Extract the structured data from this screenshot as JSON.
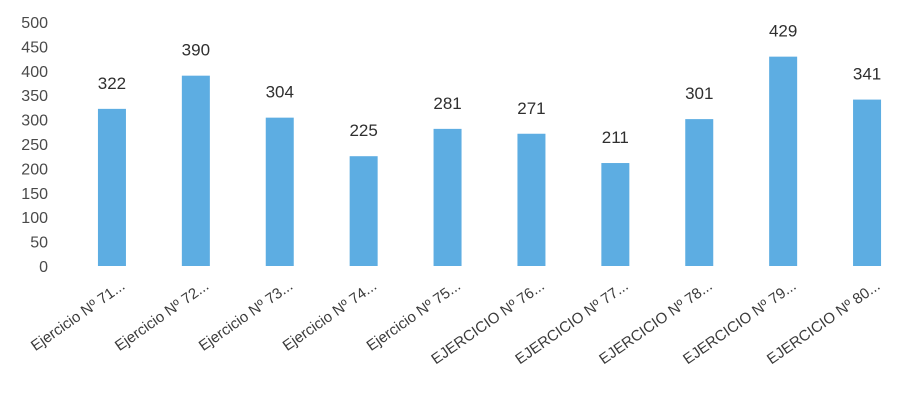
{
  "chart_data": {
    "type": "bar",
    "title": "",
    "xlabel": "",
    "ylabel": "",
    "ylim": [
      0,
      500
    ],
    "yticks": [
      0,
      50,
      100,
      150,
      200,
      250,
      300,
      350,
      400,
      450,
      500
    ],
    "grid": false,
    "legend": "none",
    "bar_color": "#5DADE2",
    "categories": [
      "Ejercicio Nº 71...",
      "Ejercicio Nº 72...",
      "Ejercicio Nº 73...",
      "Ejercicio Nº 74...",
      "Ejercicio Nº 75...",
      "EJERCICIO Nº 76...",
      "EJERCICIO Nº 77...",
      "EJERCICIO Nº 78...",
      "EJERCICIO Nº 79...",
      "EJERCICIO Nº 80..."
    ],
    "values": [
      322,
      390,
      304,
      225,
      281,
      271,
      211,
      301,
      429,
      341
    ]
  }
}
